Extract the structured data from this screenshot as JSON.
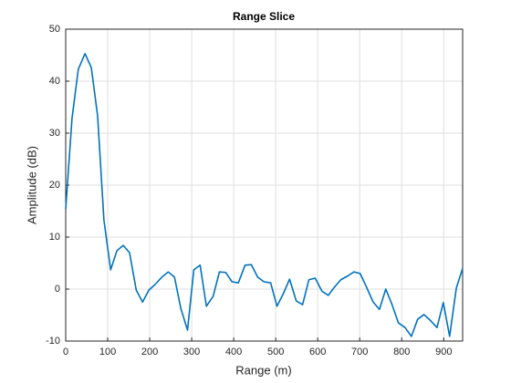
{
  "chart_data": {
    "type": "line",
    "title": "Range Slice",
    "xlabel": "Range (m)",
    "ylabel": "Amplitude (dB)",
    "x": [
      0,
      15,
      30,
      46,
      61,
      76,
      91,
      107,
      122,
      137,
      152,
      168,
      183,
      198,
      213,
      229,
      244,
      259,
      274,
      290,
      305,
      320,
      335,
      351,
      366,
      381,
      396,
      411,
      427,
      442,
      457,
      472,
      488,
      503,
      518,
      533,
      549,
      564,
      579,
      594,
      610,
      625,
      640,
      655,
      671,
      686,
      701,
      716,
      732,
      747,
      762,
      777,
      792,
      808,
      823,
      838,
      853,
      869,
      884,
      899,
      914,
      930,
      945
    ],
    "series": [
      {
        "name": "Amplitude",
        "color": "#0072bd",
        "values": [
          15.4,
          32.8,
          42.3,
          45.3,
          42.6,
          33.3,
          13.3,
          3.7,
          7.4,
          8.4,
          7.0,
          -0.2,
          -2.5,
          -0.2,
          0.9,
          2.3,
          3.3,
          2.3,
          -3.7,
          -7.9,
          3.7,
          4.6,
          -3.3,
          -1.4,
          3.3,
          3.2,
          1.4,
          1.2,
          4.6,
          4.7,
          2.3,
          1.4,
          1.2,
          -3.3,
          -0.9,
          1.9,
          -2.3,
          -3.0,
          1.8,
          2.1,
          -0.4,
          -1.2,
          0.4,
          1.8,
          2.5,
          3.3,
          3.0,
          0.4,
          -2.5,
          -3.9,
          0.0,
          -3.0,
          -6.5,
          -7.4,
          -9.1,
          -5.8,
          -4.9,
          -6.1,
          -7.4,
          -2.6,
          -9.1,
          0.2,
          4.0
        ]
      }
    ],
    "xlim": [
      0,
      945
    ],
    "ylim": [
      -10,
      50
    ],
    "xticks": [
      0,
      100,
      200,
      300,
      400,
      500,
      600,
      700,
      800,
      900
    ],
    "yticks": [
      -10,
      0,
      10,
      20,
      30,
      40,
      50
    ],
    "grid": true
  }
}
